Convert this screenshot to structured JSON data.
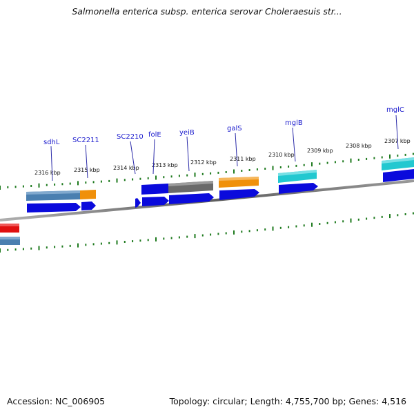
{
  "title": "Salmonella enterica subsp. enterica serovar Choleraesuis str...",
  "footer": {
    "accession": "Accession: NC_006905",
    "summary": "Topology: circular; Length: 4,755,700 bp; Genes: 4,516"
  },
  "scale_labels": [
    "2316 kbp",
    "2315 kbp",
    "2314 kbp",
    "2313 kbp",
    "2312 kbp",
    "2311 kbp",
    "2310 kbp",
    "2309 kbp",
    "2308 kbp",
    "2307 kbp"
  ],
  "gene_labels": [
    "sdhL",
    "SC2211",
    "SC2210",
    "folE",
    "yeiB",
    "galS",
    "mglB",
    "mglC"
  ],
  "colors": {
    "blue": "#0a0adc",
    "steel": "#4a7fb0",
    "orange": "#f0900a",
    "gray": "#6a6a6a",
    "cyan": "#22c8d0",
    "red": "#e01010",
    "tick": "#1e7a1e",
    "label": "#1a1acd"
  }
}
